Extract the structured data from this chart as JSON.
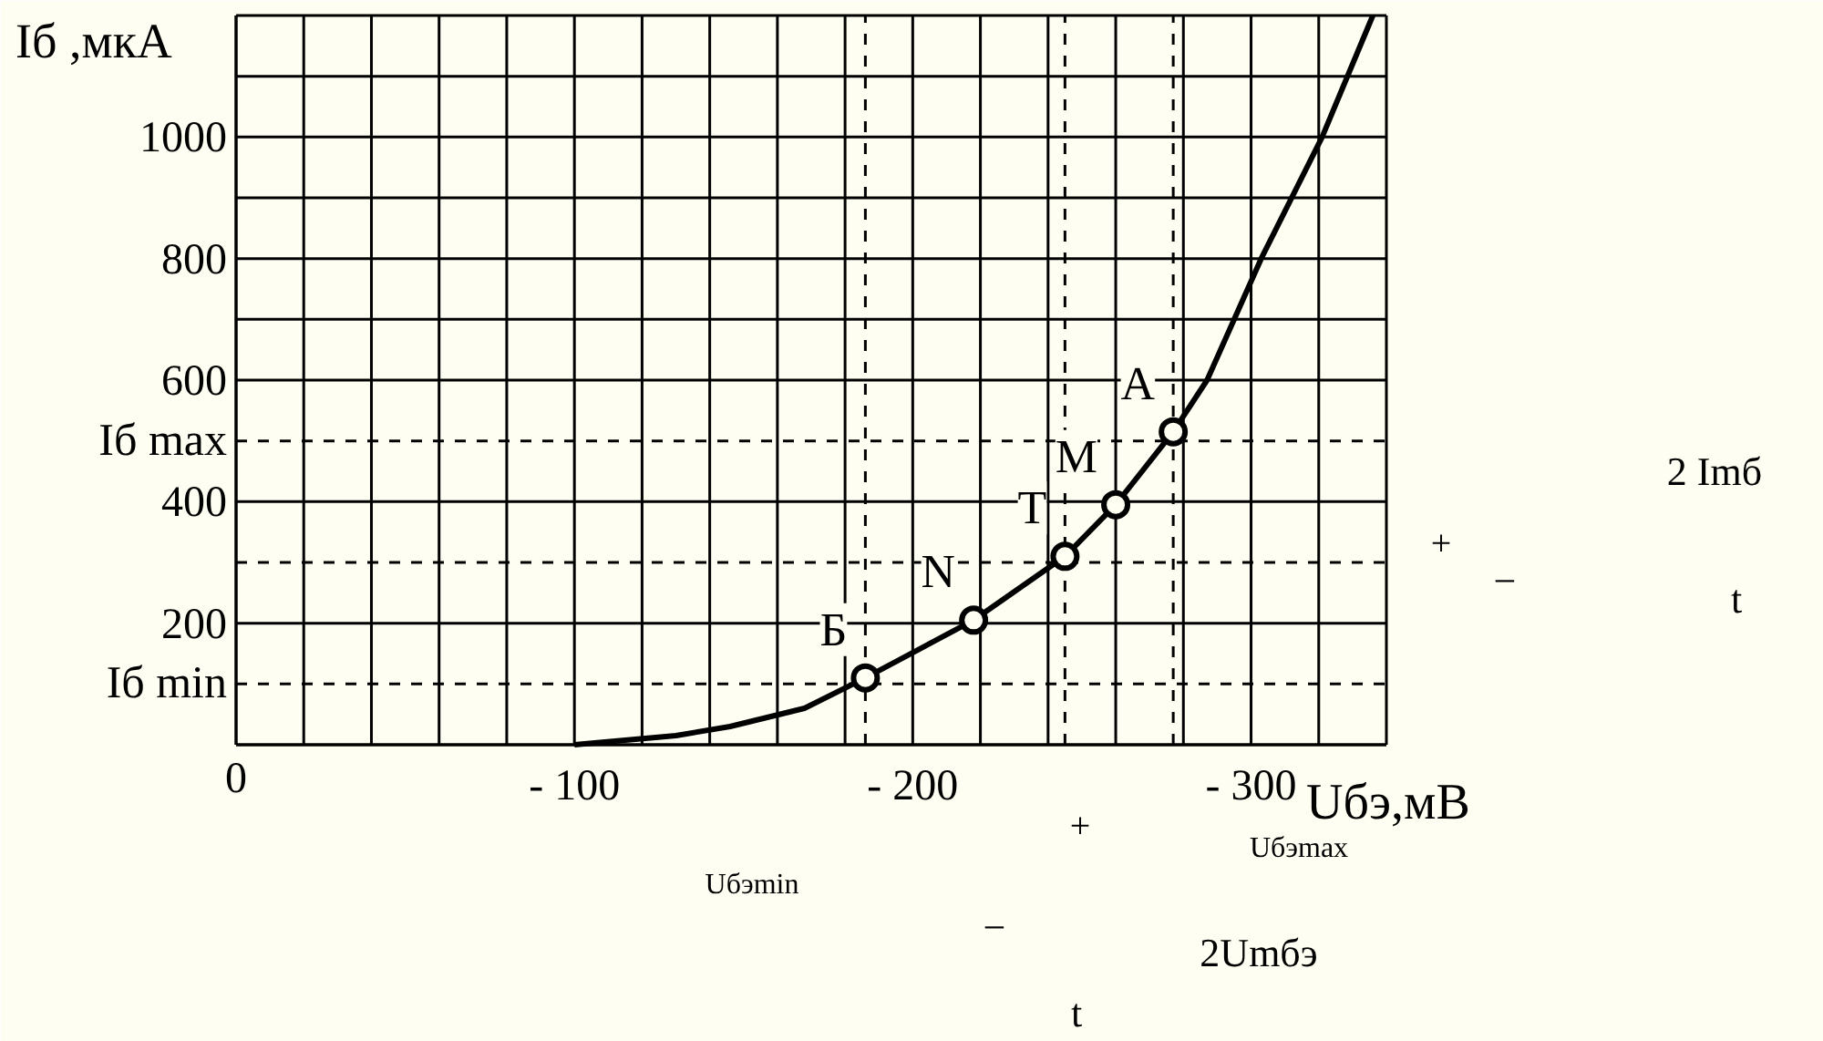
{
  "chart_data": {
    "type": "line",
    "xlabel": "Uбэ,мВ",
    "ylabel": "Iб ,мкА",
    "series": [
      {
        "name": null,
        "color": "#000000",
        "x": [
          -100,
          -130,
          -146,
          -168,
          -186,
          -218,
          -245,
          -260,
          -277,
          -287,
          -303,
          -321,
          -336
        ],
        "values": [
          0,
          15,
          30,
          60,
          110,
          205,
          310,
          395,
          515,
          600,
          800,
          1000,
          1200
        ]
      },
      {
        "name": null,
        "type": "scatter",
        "color": "#000000",
        "marker": "circle",
        "x": [
          -186,
          -218,
          -245,
          -260,
          -277
        ],
        "values": [
          110,
          205,
          310,
          395,
          515
        ]
      }
    ],
    "xlim": [
      0,
      -340
    ],
    "ylim": [
      0,
      1200
    ],
    "xticks": [
      {
        "value": 0,
        "label": "0"
      },
      {
        "value": -20,
        "label": null
      },
      {
        "value": -40,
        "label": null
      },
      {
        "value": -60,
        "label": null
      },
      {
        "value": -80,
        "label": null
      },
      {
        "value": -100,
        "label": "- 100"
      },
      {
        "value": -120,
        "label": null
      },
      {
        "value": -140,
        "label": null
      },
      {
        "value": -160,
        "label": null
      },
      {
        "value": -180,
        "label": null
      },
      {
        "value": -200,
        "label": "- 200"
      },
      {
        "value": -220,
        "label": null
      },
      {
        "value": -240,
        "label": null
      },
      {
        "value": -260,
        "label": null
      },
      {
        "value": -280,
        "label": null
      },
      {
        "value": -300,
        "label": "- 300"
      },
      {
        "value": -320,
        "label": null
      },
      {
        "value": -340,
        "label": null
      }
    ],
    "yticks": [
      {
        "value": 0,
        "label": null
      },
      200,
      400,
      600,
      {
        "value": 700,
        "label": null
      },
      800,
      {
        "value": 900,
        "label": null
      },
      1000,
      {
        "value": 1100,
        "label": null
      },
      {
        "value": 1200,
        "label": null
      }
    ],
    "grid": true,
    "ref_lines": [
      {
        "axis": "y",
        "value": 500,
        "label": "Iб max",
        "line_style": "dashed"
      },
      {
        "axis": "y",
        "value": 300,
        "label": null,
        "line_style": "dashed"
      },
      {
        "axis": "y",
        "value": 100,
        "label": "Iб min",
        "line_style": "dashed"
      },
      {
        "axis": "x",
        "value": -186,
        "label": null,
        "line_style": "dashed"
      },
      {
        "axis": "x",
        "value": -245,
        "label": null,
        "line_style": "dashed"
      },
      {
        "axis": "x",
        "value": -277,
        "label": null,
        "line_style": "dashed"
      }
    ],
    "annotations": [
      {
        "text": "Б",
        "x": -186,
        "y": 110
      },
      {
        "text": "N",
        "x": -218,
        "y": 205
      },
      {
        "text": "T",
        "x": -245,
        "y": 310
      },
      {
        "text": "M",
        "x": -260,
        "y": 395
      },
      {
        "text": "A",
        "x": -277,
        "y": 515
      },
      "2 Imб",
      "t",
      "+",
      "−",
      "Uбэmin",
      "Uбэmax",
      "+",
      "−",
      "2Umбэ",
      "t"
    ]
  }
}
